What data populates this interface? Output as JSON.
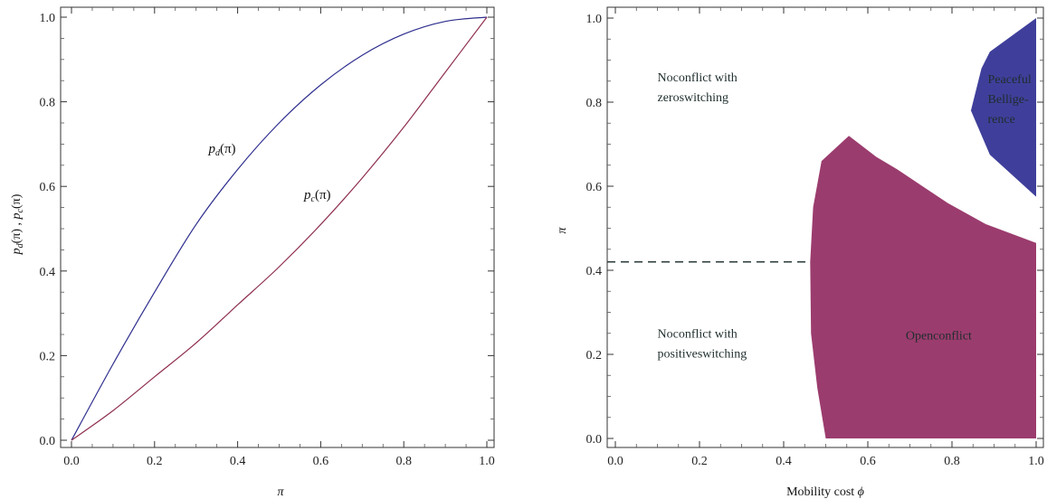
{
  "chart_data": [
    {
      "type": "line",
      "xlabel": "π",
      "ylabel": "p_d(π) , p_c(π)",
      "ylabel_parts": {
        "p1": "p",
        "s1": "d",
        "m1": "(π) , ",
        "p2": "p",
        "s2": "c",
        "m2": "(π)"
      },
      "xlim": [
        0.0,
        1.0
      ],
      "ylim": [
        0.0,
        1.0
      ],
      "x_ticks": [
        "0.0",
        "0.2",
        "0.4",
        "0.6",
        "0.8",
        "1.0"
      ],
      "y_ticks": [
        "0.0",
        "0.2",
        "0.4",
        "0.6",
        "0.8",
        "1.0"
      ],
      "x": [
        0,
        0.1,
        0.2,
        0.3,
        0.4,
        0.5,
        0.6,
        0.7,
        0.8,
        0.9,
        1.0
      ],
      "series": [
        {
          "name": "p_d(π)",
          "label_base": "p",
          "label_sub": "d",
          "label_tail": "(π)",
          "color": "#2e2e8e",
          "values": [
            0,
            0.18,
            0.35,
            0.51,
            0.64,
            0.75,
            0.84,
            0.91,
            0.96,
            0.99,
            1.0
          ]
        },
        {
          "name": "p_c(π)",
          "label_base": "p",
          "label_sub": "c",
          "label_tail": "(π)",
          "color": "#8e2e50",
          "values": [
            0,
            0.07,
            0.15,
            0.23,
            0.32,
            0.41,
            0.51,
            0.62,
            0.74,
            0.87,
            1.0
          ]
        }
      ],
      "grid": false
    },
    {
      "type": "area",
      "xlabel": "Mobility cost ϕ",
      "xlabel_parts": {
        "text": "Mobility cost ",
        "symbol": "ϕ"
      },
      "ylabel": "π",
      "xlim": [
        0.0,
        1.0
      ],
      "ylim": [
        0.0,
        1.0
      ],
      "x_ticks": [
        "0.0",
        "0.2",
        "0.4",
        "0.6",
        "0.8",
        "1.0"
      ],
      "y_ticks": [
        "0.0",
        "0.2",
        "0.4",
        "0.6",
        "0.8",
        "1.0"
      ],
      "dashed_line": {
        "y": 0.42,
        "x_from": 0.0,
        "x_to": 0.46,
        "color": "#2f3f3f"
      },
      "regions": [
        {
          "name": "Openconflict",
          "color": "#9b3c6e",
          "polygon": [
            [
              0.5,
              0.0
            ],
            [
              0.48,
              0.12
            ],
            [
              0.465,
              0.25
            ],
            [
              0.463,
              0.42
            ],
            [
              0.47,
              0.55
            ],
            [
              0.49,
              0.66
            ],
            [
              0.555,
              0.72
            ],
            [
              0.62,
              0.67
            ],
            [
              0.67,
              0.64
            ],
            [
              0.79,
              0.56
            ],
            [
              0.88,
              0.51
            ],
            [
              1.0,
              0.465
            ],
            [
              1.0,
              0.0
            ]
          ]
        },
        {
          "name": "Peaceful Belligerence",
          "color": "#3f3f9b",
          "polygon": [
            [
              1.0,
              1.0
            ],
            [
              0.89,
              0.92
            ],
            [
              0.87,
              0.88
            ],
            [
              0.845,
              0.78
            ],
            [
              0.89,
              0.675
            ],
            [
              1.0,
              0.575
            ]
          ]
        }
      ],
      "annotations": [
        {
          "lines": [
            "Noconflict with",
            "zeroswitching"
          ],
          "x": 0.1,
          "y": 0.85,
          "color": "#1f2d2d"
        },
        {
          "lines": [
            "Noconflict with",
            "positiveswitching"
          ],
          "x": 0.1,
          "y": 0.24,
          "color": "#1f2d2d"
        },
        {
          "lines": [
            "Openconflict"
          ],
          "x": 0.69,
          "y": 0.235,
          "color": "#1f2d2d"
        },
        {
          "lines": [
            "Peaceful",
            "Bellige-",
            "rence"
          ],
          "x": 0.885,
          "y": 0.845,
          "color": "#e6e6f5"
        }
      ],
      "grid": false
    }
  ]
}
